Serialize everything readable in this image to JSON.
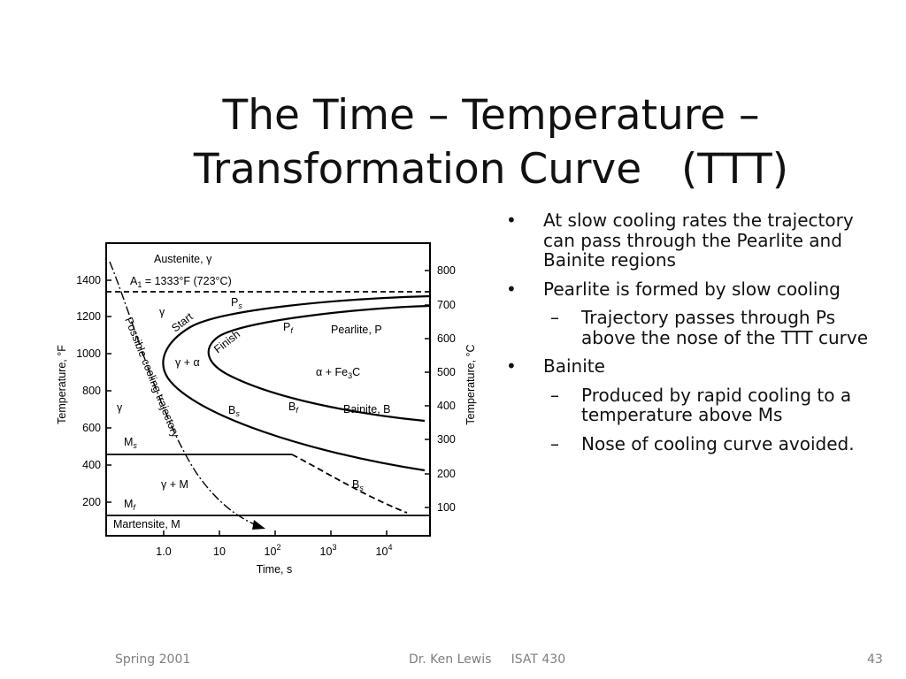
{
  "slide": {
    "title_line1": "The Time – Temperature –",
    "title_line2": "Transformation Curve   (TTT)",
    "bullets": [
      {
        "level": 1,
        "text": "At slow cooling rates the trajectory can pass through the Pearlite and Bainite regions"
      },
      {
        "level": 1,
        "text": "Pearlite is formed by slow cooling"
      },
      {
        "level": 2,
        "text": "Trajectory passes through Ps above the nose of the TTT curve"
      },
      {
        "level": 1,
        "text": "Bainite"
      },
      {
        "level": 2,
        "text": "Produced by rapid cooling to a temperature above Ms"
      },
      {
        "level": 2,
        "text": "Nose of cooling curve avoided."
      }
    ],
    "footer_left": "Spring 2001",
    "footer_center": "Dr. Ken Lewis     ISAT 430",
    "footer_right": "43"
  },
  "diagram": {
    "left_axis_label": "Temperature, °F",
    "right_axis_label": "Temperature, °C",
    "x_axis_label": "Time, s",
    "left_ticks": [
      "1400",
      "1200",
      "1000",
      "800",
      "600",
      "400",
      "200"
    ],
    "right_ticks": [
      "800",
      "700",
      "600",
      "500",
      "400",
      "300",
      "200",
      "100"
    ],
    "x_ticks": [
      "1.0",
      "10",
      "10",
      "10",
      "10"
    ],
    "x_tick_exponents": [
      "",
      "",
      "2",
      "3",
      "4"
    ],
    "labels": {
      "austenite": "Austenite, γ",
      "a1": "A",
      "a1_sub": "1",
      "a1_rest": " = 1333°F (723°C)",
      "gamma1": "γ",
      "gamma2": "γ",
      "ps": "P",
      "ps_sub": "s",
      "pf": "P",
      "pf_sub": "f",
      "start": "Start",
      "finish": "Finish",
      "pearlite": "Pearlite, P",
      "gamma_alpha": "γ + α",
      "alpha_fe3c": "α + Fe",
      "alpha_fe3c_sub": "3",
      "alpha_fe3c_end": "C",
      "bs1": "B",
      "bs1_sub": "s",
      "bf": "B",
      "bf_sub": "f",
      "bainite": "Bainite, B",
      "ms": "M",
      "ms_sub": "s",
      "gamma_m": "γ + M",
      "bs2": "B",
      "bs2_sub": "s",
      "mf": "M",
      "mf_sub": "f",
      "martensite": "Martensite, M",
      "trajectory": "Possible cooling trajectory"
    }
  }
}
